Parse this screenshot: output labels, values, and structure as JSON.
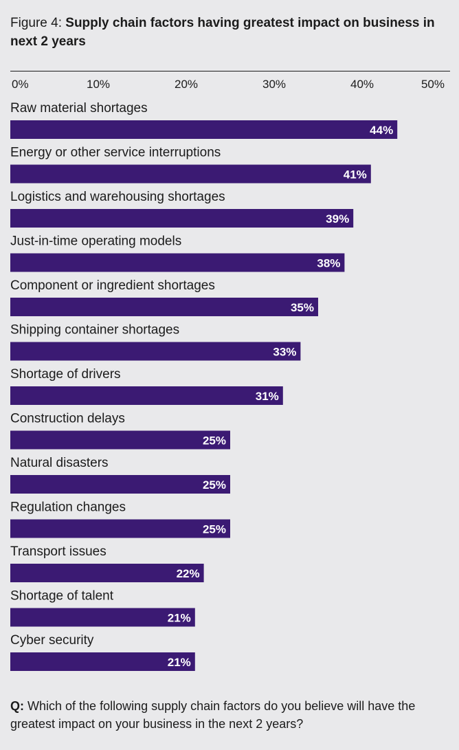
{
  "header": {
    "prefix": "Figure 4:",
    "title": "Supply chain factors having greatest impact on business in next 2 years"
  },
  "footer": {
    "question_prefix": "Q:",
    "question": "Which of the following supply chain factors do you believe will have the greatest impact on your business in the next 2 years?"
  },
  "colors": {
    "bar": "#3b1a73",
    "bar_label": "#ffffff",
    "background": "#e9e9eb",
    "text": "#1b1b1b"
  },
  "chart_data": {
    "type": "bar",
    "orientation": "horizontal",
    "title": "Supply chain factors having greatest impact on business in next 2 years",
    "xlim": [
      0,
      50
    ],
    "x_ticks": [
      "0%",
      "10%",
      "20%",
      "30%",
      "40%",
      "50%"
    ],
    "grid": false,
    "categories": [
      "Raw material shortages",
      "Energy or other service interruptions",
      "Logistics and warehousing shortages",
      "Just-in-time operating models",
      "Component or ingredient shortages",
      "Shipping container shortages",
      "Shortage of drivers",
      "Construction delays",
      "Natural disasters",
      "Regulation changes",
      "Transport issues",
      "Shortage of talent",
      "Cyber security"
    ],
    "values": [
      44,
      41,
      39,
      38,
      35,
      33,
      31,
      25,
      25,
      25,
      22,
      21,
      21
    ],
    "value_labels": [
      "44%",
      "41%",
      "39%",
      "38%",
      "35%",
      "33%",
      "31%",
      "25%",
      "25%",
      "25%",
      "22%",
      "21%",
      "21%"
    ]
  }
}
